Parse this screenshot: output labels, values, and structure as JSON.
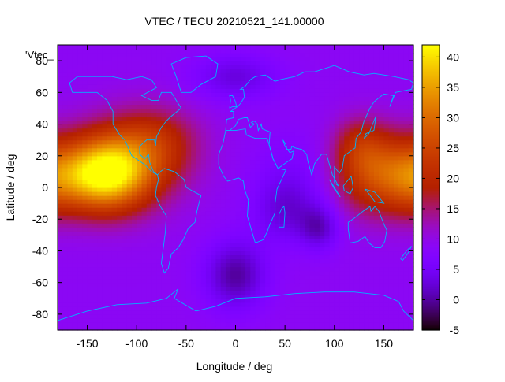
{
  "chart_data": {
    "type": "heatmap",
    "title": "VTEC / TECU 20210521_141.00000",
    "xlabel": "Longitude / deg",
    "ylabel": "Latitude / deg",
    "key_label": "'Vtec_",
    "xlim": [
      -180,
      180
    ],
    "ylim": [
      -90,
      90
    ],
    "x_ticks": [
      "-150",
      "-100",
      "-50",
      "0",
      "50",
      "100",
      "150"
    ],
    "x_tick_values": [
      -150,
      -100,
      -50,
      0,
      50,
      100,
      150
    ],
    "y_ticks": [
      "-80",
      "-60",
      "-40",
      "-20",
      "0",
      "20",
      "40",
      "60",
      "80"
    ],
    "y_tick_values": [
      -80,
      -60,
      -40,
      -20,
      0,
      20,
      40,
      60,
      80
    ],
    "colorbar": {
      "range": [
        -5,
        42
      ],
      "ticks": [
        "-5",
        "0",
        "5",
        "10",
        "15",
        "20",
        "25",
        "30",
        "35",
        "40"
      ],
      "tick_values": [
        -5,
        0,
        5,
        10,
        15,
        20,
        25,
        30,
        35,
        40
      ],
      "palette": "black-purple-red-orange-yellow"
    },
    "grid": {
      "lon_step": 5,
      "lat_step": 2.5
    },
    "features": [
      {
        "lon": -135,
        "lat": 8,
        "amp": 30,
        "slon": 32,
        "slat": 16
      },
      {
        "lon": -105,
        "lat": 18,
        "amp": 10,
        "slon": 40,
        "slat": 20
      },
      {
        "lon": -80,
        "lat": 30,
        "amp": 7,
        "slon": 30,
        "slat": 15
      },
      {
        "lon": 140,
        "lat": 10,
        "amp": 16,
        "slon": 28,
        "slat": 18
      },
      {
        "lon": 125,
        "lat": 28,
        "amp": 6,
        "slon": 18,
        "slat": 12
      },
      {
        "lon": 175,
        "lat": 5,
        "amp": 8,
        "slon": 20,
        "slat": 16
      },
      {
        "lon": 85,
        "lat": -25,
        "amp": -7,
        "slon": 14,
        "slat": 10
      },
      {
        "lon": 50,
        "lat": -15,
        "amp": -5,
        "slon": 22,
        "slat": 14
      },
      {
        "lon": 0,
        "lat": -55,
        "amp": -9,
        "slon": 22,
        "slat": 15
      },
      {
        "lon": 0,
        "lat": 70,
        "amp": -6,
        "slon": 30,
        "slat": 10
      },
      {
        "lon": 60,
        "lat": 5,
        "amp": -3,
        "slon": 30,
        "slat": 20
      }
    ],
    "base_value": 9,
    "continent_color": "#00b4ff"
  }
}
